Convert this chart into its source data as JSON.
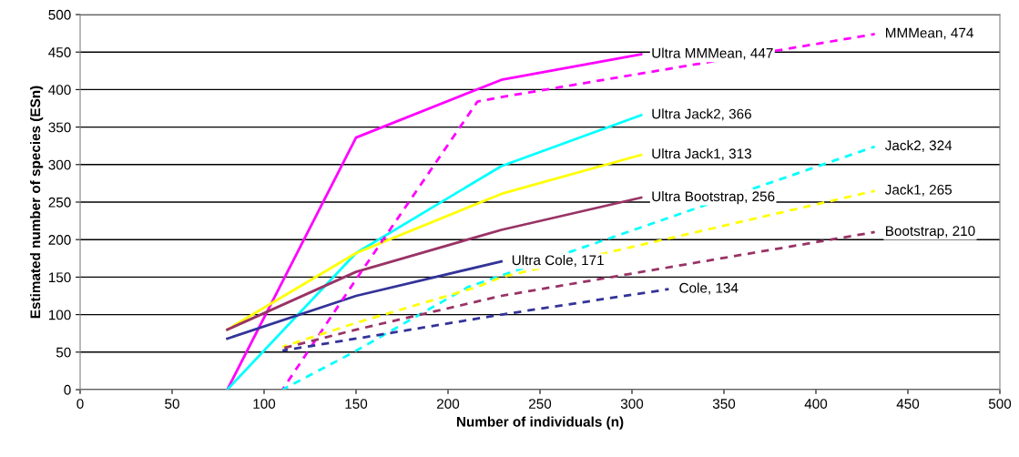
{
  "chart_data": {
    "type": "line",
    "xlabel": "Number of individuals (n)",
    "ylabel": "Estimated number of species (ESn)",
    "xlim": [
      0,
      500
    ],
    "xticks": [
      0,
      50,
      100,
      150,
      200,
      250,
      300,
      350,
      400,
      450,
      500
    ],
    "ylim": [
      0,
      500
    ],
    "yticks": [
      0,
      50,
      100,
      150,
      200,
      250,
      300,
      350,
      400,
      450,
      500
    ],
    "grid": "y",
    "legend": false,
    "series": [
      {
        "color": "#ff00ff",
        "line_style": "solid",
        "x": [
          80,
          150,
          229,
          305
        ],
        "values": [
          0,
          336,
          413,
          447
        ]
      },
      {
        "color": "#00ffff",
        "line_style": "solid",
        "x": [
          80,
          150,
          229,
          305
        ],
        "values": [
          0,
          182,
          298,
          366
        ]
      },
      {
        "color": "#ffff00",
        "line_style": "solid",
        "x": [
          80,
          150,
          229,
          305
        ],
        "values": [
          80,
          182,
          261,
          313
        ]
      },
      {
        "color": "#993366",
        "line_style": "solid",
        "x": [
          80,
          150,
          229,
          305
        ],
        "values": [
          80,
          157,
          213,
          256
        ]
      },
      {
        "color": "#333399",
        "line_style": "solid",
        "x": [
          80,
          150,
          229
        ],
        "values": [
          68,
          125,
          171
        ]
      },
      {
        "color": "#ff00ff",
        "line_style": "dashed",
        "x": [
          110,
          150,
          216,
          229,
          432
        ],
        "values": [
          0,
          147,
          384,
          390,
          474
        ]
      },
      {
        "color": "#00ffff",
        "line_style": "dashed",
        "x": [
          110,
          148,
          211,
          229,
          432
        ],
        "values": [
          0,
          49,
          137,
          152,
          324
        ]
      },
      {
        "color": "#ffff00",
        "line_style": "dashed",
        "x": [
          110,
          150,
          216,
          229,
          432
        ],
        "values": [
          57,
          89,
          137,
          150,
          265
        ]
      },
      {
        "color": "#993366",
        "line_style": "dashed",
        "x": [
          110,
          150,
          229,
          432
        ],
        "values": [
          55,
          80,
          125,
          210
        ]
      },
      {
        "color": "#333399",
        "line_style": "dashed",
        "x": [
          110,
          150,
          229,
          320
        ],
        "values": [
          52,
          68,
          100,
          134
        ]
      }
    ],
    "annotations": [
      {
        "text": "Ultra MMMean, 447",
        "x": 305,
        "y": 447
      },
      {
        "text": "Ultra Jack2, 366",
        "x": 305,
        "y": 366
      },
      {
        "text": "Ultra Jack1, 313",
        "x": 305,
        "y": 313
      },
      {
        "text": "Ultra Bootstrap, 256",
        "x": 305,
        "y": 256
      },
      {
        "text": "Ultra Cole, 171",
        "x": 229,
        "y": 171
      },
      {
        "text": "MMMean, 474",
        "x": 432,
        "y": 474
      },
      {
        "text": "Jack2, 324",
        "x": 432,
        "y": 324
      },
      {
        "text": "Jack1, 265",
        "x": 432,
        "y": 265
      },
      {
        "text": "Bootstrap, 210",
        "x": 432,
        "y": 210
      },
      {
        "text": "Cole, 134",
        "x": 320,
        "y": 134
      }
    ]
  }
}
